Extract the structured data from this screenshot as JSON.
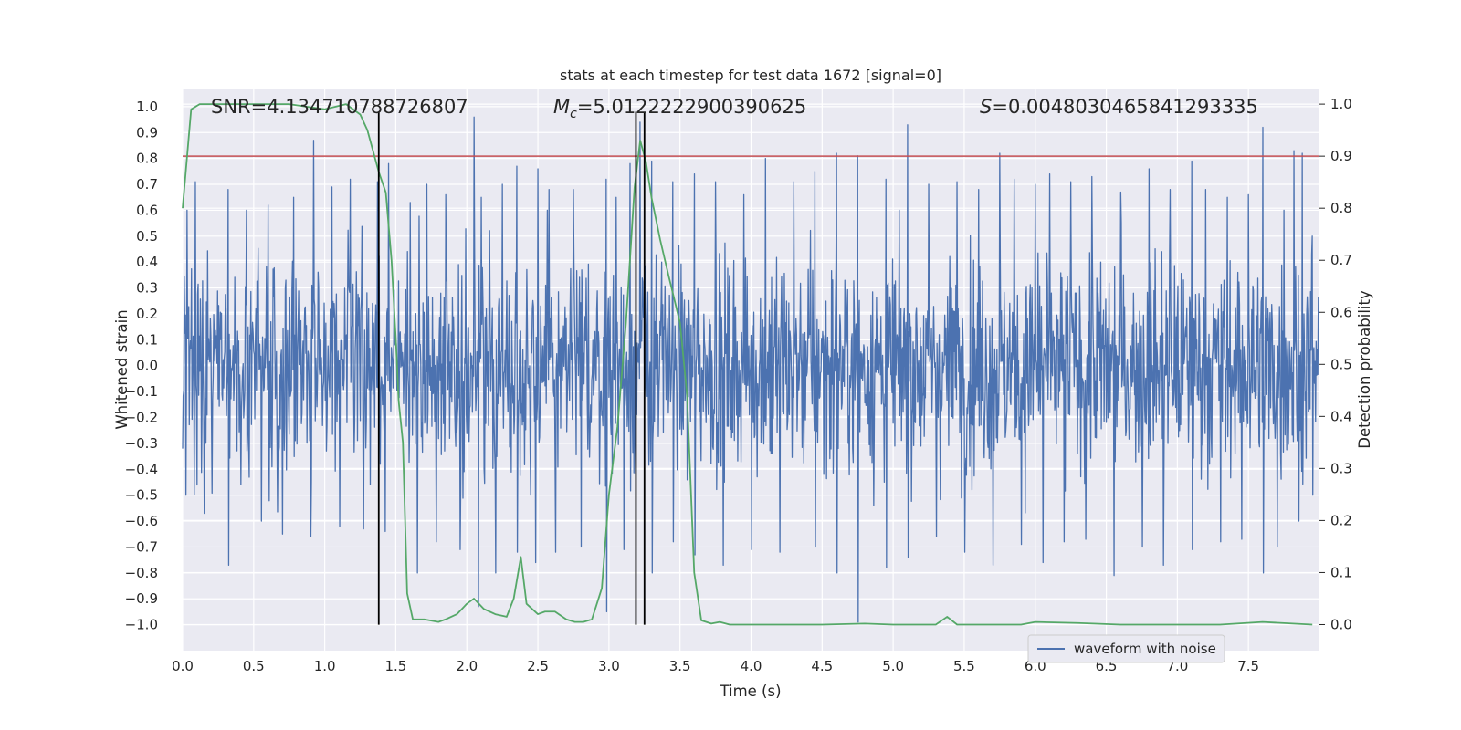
{
  "chart_data": {
    "type": "line",
    "title": "stats at each timestep for test data 1672 [signal=0]",
    "xlabel": "Time (s)",
    "ylabel": "Whitened strain",
    "y2label": "Detection probability",
    "xlim": [
      0.0,
      8.0
    ],
    "ylim": [
      -1.1,
      1.07
    ],
    "y2lim": [
      -0.05,
      1.03
    ],
    "xticks": [
      0.0,
      0.5,
      1.0,
      1.5,
      2.0,
      2.5,
      3.0,
      3.5,
      4.0,
      4.5,
      5.0,
      5.5,
      6.0,
      6.5,
      7.0,
      7.5
    ],
    "xtick_labels": [
      "0.0",
      "0.5",
      "1.0",
      "1.5",
      "2.0",
      "2.5",
      "3.0",
      "3.5",
      "4.0",
      "4.5",
      "5.0",
      "5.5",
      "6.0",
      "6.5",
      "7.0",
      "7.5"
    ],
    "yticks": [
      1.0,
      0.9,
      0.8,
      0.7,
      0.6,
      0.5,
      0.4,
      0.3,
      0.2,
      0.1,
      0.0,
      -0.1,
      -0.2,
      -0.3,
      -0.4,
      -0.5,
      -0.6,
      -0.7,
      -0.8,
      -0.9,
      -1.0
    ],
    "ytick_labels": [
      "1.0",
      "0.9",
      "0.8",
      "0.7",
      "0.6",
      "0.5",
      "0.4",
      "0.3",
      "0.2",
      "0.1",
      "0.0",
      "−0.1",
      "−0.2",
      "−0.3",
      "−0.4",
      "−0.5",
      "−0.6",
      "−0.7",
      "−0.8",
      "−0.9",
      "−1.0"
    ],
    "y2ticks": [
      1.0,
      0.9,
      0.8,
      0.7,
      0.6,
      0.5,
      0.4,
      0.3,
      0.2,
      0.1,
      0.0
    ],
    "y2tick_labels": [
      "1.0",
      "0.9",
      "0.8",
      "0.7",
      "0.6",
      "0.5",
      "0.4",
      "0.3",
      "0.2",
      "0.1",
      "0.0"
    ],
    "grid": true,
    "annotations": {
      "snr": "SNR=4.134710788726807",
      "mc_symbol": "M",
      "mc_subscript": "c",
      "mc_value": "=5.0122222900390625",
      "s_symbol": "S",
      "s_value": "=0.0048030465841293335"
    },
    "legend": {
      "position": "lower-right",
      "entries": [
        "waveform with noise"
      ]
    },
    "series": [
      {
        "name": "waveform with noise",
        "axis": "left",
        "style": "noise",
        "color": "#4c72b0",
        "samples": 2048,
        "envelope_rms": 0.2,
        "peaks_upper": [
          [
            0.03,
            0.6
          ],
          [
            0.09,
            0.71
          ],
          [
            0.32,
            0.68
          ],
          [
            0.45,
            0.6
          ],
          [
            0.6,
            0.62
          ],
          [
            0.78,
            0.65
          ],
          [
            0.92,
            0.87
          ],
          [
            1.05,
            0.69
          ],
          [
            1.18,
            0.72
          ],
          [
            1.37,
            0.71
          ],
          [
            1.45,
            0.78
          ],
          [
            1.6,
            0.63
          ],
          [
            1.72,
            0.7
          ],
          [
            1.85,
            0.66
          ],
          [
            2.05,
            0.96
          ],
          [
            2.1,
            0.65
          ],
          [
            2.25,
            0.7
          ],
          [
            2.35,
            0.77
          ],
          [
            2.5,
            0.76
          ],
          [
            2.58,
            0.68
          ],
          [
            2.75,
            0.68
          ],
          [
            2.98,
            0.72
          ],
          [
            3.05,
            0.65
          ],
          [
            3.15,
            0.78
          ],
          [
            3.22,
            0.94
          ],
          [
            3.3,
            0.79
          ],
          [
            3.45,
            0.71
          ],
          [
            3.6,
            0.74
          ],
          [
            3.75,
            0.71
          ],
          [
            3.95,
            0.66
          ],
          [
            4.1,
            0.8
          ],
          [
            4.3,
            0.71
          ],
          [
            4.45,
            0.75
          ],
          [
            4.6,
            0.82
          ],
          [
            4.75,
            0.81
          ],
          [
            4.95,
            0.72
          ],
          [
            5.1,
            0.93
          ],
          [
            5.25,
            0.7
          ],
          [
            5.45,
            0.71
          ],
          [
            5.6,
            0.68
          ],
          [
            5.75,
            0.82
          ],
          [
            5.85,
            0.72
          ],
          [
            6.0,
            0.7
          ],
          [
            6.1,
            0.74
          ],
          [
            6.25,
            0.71
          ],
          [
            6.4,
            0.73
          ],
          [
            6.6,
            0.67
          ],
          [
            6.8,
            0.76
          ],
          [
            6.95,
            0.68
          ],
          [
            7.1,
            0.79
          ],
          [
            7.2,
            0.68
          ],
          [
            7.35,
            0.65
          ],
          [
            7.5,
            0.66
          ],
          [
            7.6,
            0.92
          ],
          [
            7.75,
            0.6
          ],
          [
            7.82,
            0.83
          ],
          [
            7.88,
            0.82
          ],
          [
            7.95,
            0.5
          ]
        ],
        "peaks_lower": [
          [
            0.02,
            -0.5
          ],
          [
            0.15,
            -0.57
          ],
          [
            0.32,
            -0.77
          ],
          [
            0.55,
            -0.6
          ],
          [
            0.7,
            -0.65
          ],
          [
            0.9,
            -0.66
          ],
          [
            1.1,
            -0.62
          ],
          [
            1.27,
            -0.63
          ],
          [
            1.42,
            -0.64
          ],
          [
            1.65,
            -0.8
          ],
          [
            1.78,
            -0.68
          ],
          [
            1.95,
            -0.71
          ],
          [
            2.08,
            -0.93
          ],
          [
            2.2,
            -0.8
          ],
          [
            2.35,
            -0.72
          ],
          [
            2.48,
            -0.76
          ],
          [
            2.62,
            -0.72
          ],
          [
            2.8,
            -0.7
          ],
          [
            2.98,
            -0.95
          ],
          [
            3.1,
            -0.71
          ],
          [
            3.3,
            -0.8
          ],
          [
            3.45,
            -0.68
          ],
          [
            3.6,
            -0.73
          ],
          [
            3.8,
            -0.77
          ],
          [
            4.0,
            -0.71
          ],
          [
            4.2,
            -0.72
          ],
          [
            4.45,
            -0.7
          ],
          [
            4.6,
            -0.8
          ],
          [
            4.75,
            -0.99
          ],
          [
            4.95,
            -0.78
          ],
          [
            5.1,
            -0.74
          ],
          [
            5.3,
            -0.66
          ],
          [
            5.5,
            -0.72
          ],
          [
            5.7,
            -0.77
          ],
          [
            5.9,
            -0.69
          ],
          [
            6.05,
            -0.76
          ],
          [
            6.2,
            -0.68
          ],
          [
            6.35,
            -0.67
          ],
          [
            6.55,
            -0.81
          ],
          [
            6.75,
            -0.7
          ],
          [
            6.9,
            -0.77
          ],
          [
            7.1,
            -0.71
          ],
          [
            7.3,
            -0.68
          ],
          [
            7.45,
            -0.67
          ],
          [
            7.6,
            -0.8
          ],
          [
            7.7,
            -0.7
          ],
          [
            7.85,
            -0.6
          ],
          [
            7.95,
            -0.5
          ]
        ]
      },
      {
        "name": "detection probability",
        "axis": "right",
        "style": "line",
        "color": "#55a868",
        "x": [
          0.0,
          0.06,
          0.12,
          0.25,
          0.5,
          0.75,
          1.0,
          1.15,
          1.25,
          1.3,
          1.38,
          1.43,
          1.47,
          1.5,
          1.52,
          1.55,
          1.58,
          1.62,
          1.7,
          1.8,
          1.85,
          1.93,
          2.0,
          2.05,
          2.12,
          2.2,
          2.28,
          2.33,
          2.38,
          2.42,
          2.5,
          2.55,
          2.62,
          2.7,
          2.76,
          2.82,
          2.88,
          2.95,
          3.0,
          3.06,
          3.12,
          3.18,
          3.22,
          3.26,
          3.3,
          3.36,
          3.42,
          3.5,
          3.55,
          3.6,
          3.65,
          3.72,
          3.78,
          3.85,
          4.0,
          4.3,
          4.5,
          4.8,
          5.0,
          5.2,
          5.3,
          5.38,
          5.45,
          5.6,
          5.9,
          6.0,
          6.3,
          6.6,
          7.0,
          7.3,
          7.6,
          7.95
        ],
        "values": [
          0.8,
          0.99,
          1.0,
          1.0,
          1.0,
          1.0,
          0.99,
          1.0,
          0.98,
          0.95,
          0.87,
          0.83,
          0.7,
          0.55,
          0.43,
          0.35,
          0.06,
          0.01,
          0.01,
          0.005,
          0.01,
          0.02,
          0.04,
          0.05,
          0.03,
          0.02,
          0.015,
          0.05,
          0.13,
          0.04,
          0.02,
          0.025,
          0.025,
          0.01,
          0.005,
          0.005,
          0.01,
          0.07,
          0.25,
          0.38,
          0.58,
          0.84,
          0.93,
          0.89,
          0.82,
          0.74,
          0.67,
          0.58,
          0.44,
          0.1,
          0.008,
          0.002,
          0.005,
          0.0,
          0.0,
          0.0,
          0.0,
          0.002,
          0.0,
          0.0,
          0.0,
          0.015,
          0.0,
          0.0,
          0.0,
          0.005,
          0.003,
          0.0,
          0.0,
          0.0,
          0.005,
          0.0
        ]
      }
    ],
    "threshold": {
      "name": "threshold",
      "axis": "right",
      "value": 0.9,
      "color": "#c44e52"
    },
    "event_lines": {
      "axis": "left",
      "color": "#000000",
      "x": [
        1.38,
        3.19,
        3.25
      ],
      "y_from": -1.0,
      "y_to": 0.98
    }
  }
}
